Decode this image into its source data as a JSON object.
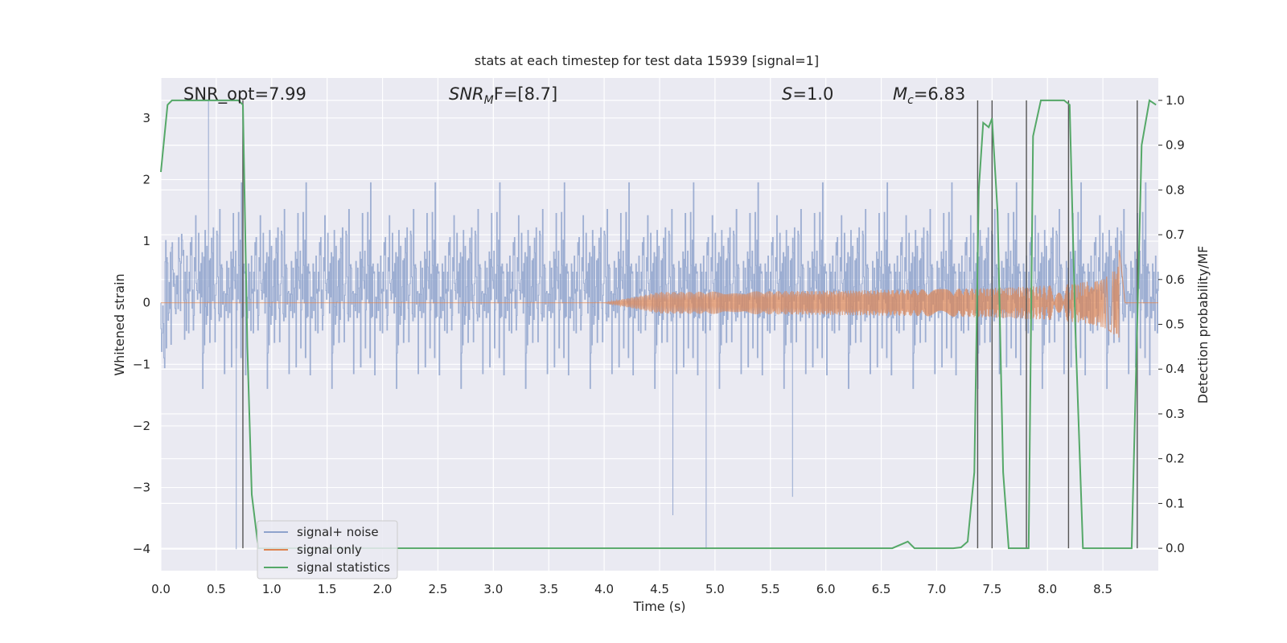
{
  "chart_data": {
    "type": "line",
    "title": "stats at each timestep for test data 15939 [signal=1]",
    "xlabel": "Time (s)",
    "ylabel": "Whitened strain",
    "y2label": "Detection probability/MF",
    "xlim": [
      0.0,
      9.0
    ],
    "ylim": [
      -4.35,
      3.65
    ],
    "y2lim": [
      -0.05,
      1.05
    ],
    "xticks": [
      "0.0",
      "0.5",
      "1.0",
      "1.5",
      "2.0",
      "2.5",
      "3.0",
      "3.5",
      "4.0",
      "4.5",
      "5.0",
      "5.5",
      "6.0",
      "6.5",
      "7.0",
      "7.5",
      "8.0",
      "8.5"
    ],
    "yticks": [
      "3",
      "2",
      "1",
      "0",
      "−1",
      "−2",
      "−3",
      "−4"
    ],
    "y2ticks": [
      "1.0",
      "0.9",
      "0.8",
      "0.7",
      "0.6",
      "0.5",
      "0.4",
      "0.3",
      "0.2",
      "0.1",
      "0.0"
    ],
    "grid": true,
    "legend_position": "lower-left",
    "annotations": {
      "snr_opt": "SNR_opt=7.99",
      "snr_mf_base": "SNR",
      "snr_mf_sub": "M",
      "snr_mf_rest": "F=[8.7]",
      "s_label": "S",
      "s_value": "=1.0",
      "mc_base": "M",
      "mc_sub": "c",
      "mc_value": "=6.83"
    },
    "series": [
      {
        "name": "signal+ noise",
        "color": "#8fa3cc",
        "axis": "left",
        "noise_sigma": 0.9,
        "envelope": {
          "x": [
            0.0,
            9.0
          ],
          "low": [
            -2.0,
            -2.0
          ],
          "high": [
            2.5,
            2.5
          ]
        },
        "notable_spikes": [
          {
            "x": 0.43,
            "y": 3.3
          },
          {
            "x": 0.68,
            "y": -4.0
          },
          {
            "x": 4.92,
            "y": -4.0
          },
          {
            "x": 4.62,
            "y": -3.45
          },
          {
            "x": 5.7,
            "y": -3.15
          }
        ]
      },
      {
        "name": "signal only",
        "color": "#dd8452",
        "axis": "left",
        "chirp": {
          "start": 4.0,
          "peak_time": 8.65,
          "peak_amplitude": 1.0,
          "min_at_peak": -0.85,
          "end": 8.7
        }
      },
      {
        "name": "signal statistics",
        "color": "#55a868",
        "axis": "right",
        "x": [
          0.0,
          0.06,
          0.1,
          0.2,
          0.3,
          0.5,
          0.7,
          0.74,
          0.78,
          0.82,
          0.88,
          1.0,
          2.0,
          3.0,
          4.0,
          5.0,
          6.0,
          6.6,
          6.74,
          6.8,
          6.9,
          7.0,
          7.15,
          7.22,
          7.28,
          7.34,
          7.38,
          7.42,
          7.47,
          7.5,
          7.55,
          7.6,
          7.65,
          7.7,
          7.75,
          7.8,
          7.83,
          7.87,
          7.94,
          8.05,
          8.15,
          8.2,
          8.25,
          8.32,
          8.5,
          8.7,
          8.76,
          8.8,
          8.85,
          8.92,
          8.98
        ],
        "y": [
          0.84,
          0.99,
          1.0,
          1.0,
          1.0,
          1.0,
          1.0,
          0.99,
          0.45,
          0.12,
          0.0,
          0.0,
          0.0,
          0.0,
          0.0,
          0.0,
          0.0,
          0.0,
          0.015,
          0.0,
          0.0,
          0.0,
          0.0,
          0.002,
          0.015,
          0.17,
          0.8,
          0.95,
          0.94,
          0.96,
          0.75,
          0.17,
          0.0,
          0.0,
          0.0,
          0.0,
          0.0,
          0.92,
          1.0,
          1.0,
          1.0,
          0.99,
          0.5,
          0.0,
          0.0,
          0.0,
          0.0,
          0.4,
          0.9,
          1.0,
          0.99
        ]
      }
    ],
    "threshold_lines": {
      "color": "#555555",
      "x": [
        0.74,
        7.37,
        7.5,
        7.81,
        8.19,
        8.81
      ]
    }
  }
}
